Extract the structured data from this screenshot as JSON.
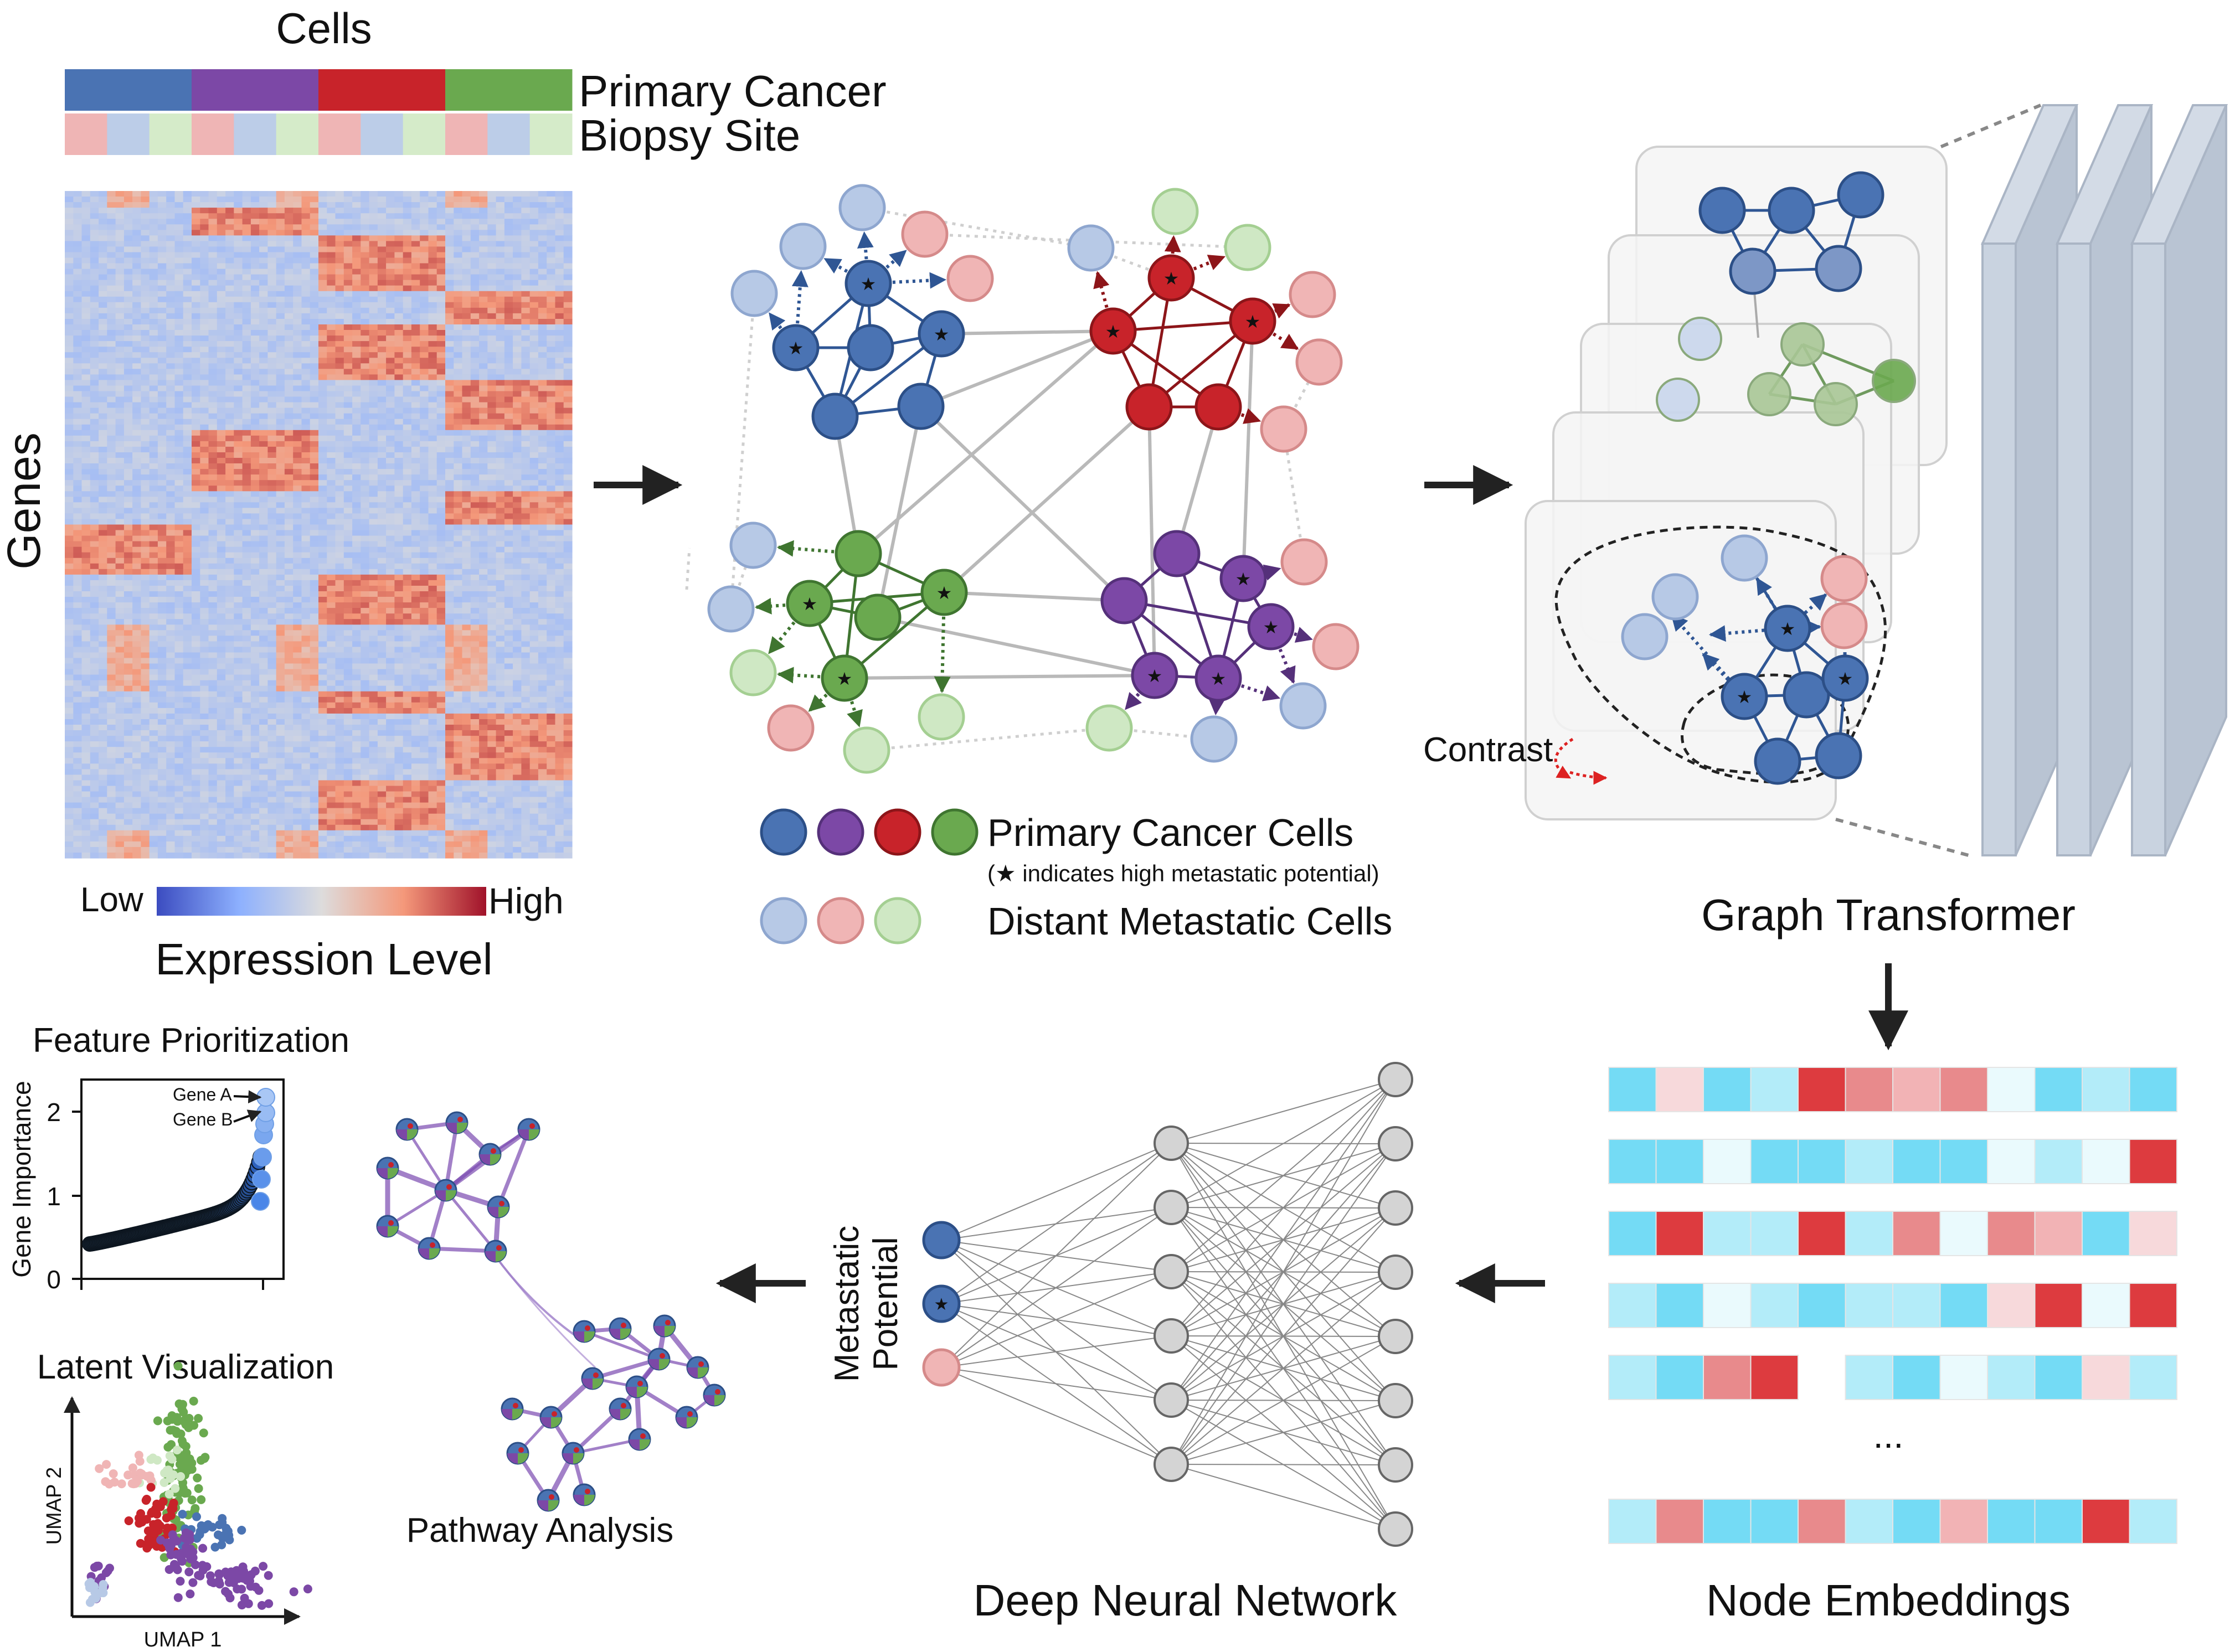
{
  "heatmap": {
    "cells_label": "Cells",
    "genes_label": "Genes",
    "primary_cancer_label": "Primary Cancer",
    "biopsy_site_label": "Biopsy Site",
    "colorbar_low": "Low",
    "colorbar_high": "High",
    "colorbar_title": "Expression Level"
  },
  "graph": {
    "legend_primary": "Primary Cancer Cells",
    "legend_primary_note": "(★ indicates high metastatic potential)",
    "legend_metastatic": "Distant Metastatic Cells"
  },
  "transformer": {
    "title": "Graph Transformer",
    "contrast_label": "Contrast"
  },
  "embeddings": {
    "title": "Node Embeddings",
    "ellipsis": "..."
  },
  "dnn": {
    "title": "Deep Neural Network",
    "output_label_line1": "Metastatic",
    "output_label_line2": "Potential"
  },
  "feature": {
    "title": "Feature Prioritization",
    "ylabel": "Gene Importance",
    "ticks": [
      "0",
      "1",
      "2"
    ],
    "gene_a": "Gene A",
    "gene_b": "Gene B"
  },
  "latent": {
    "title": "Latent Visualization",
    "xlabel": "UMAP 1",
    "ylabel": "UMAP 2"
  },
  "pathway": {
    "title": "Pathway Analysis"
  },
  "colors": {
    "blue": "#4a73b3",
    "purple": "#7c48a6",
    "red": "#c8232a",
    "green": "#6aa94f",
    "light_blue": "#b7c9e6",
    "light_red": "#f0b5b5",
    "light_green": "#cfe8c4",
    "cyan": "#6fd6f2",
    "embed_red": "#dd3b3f"
  }
}
